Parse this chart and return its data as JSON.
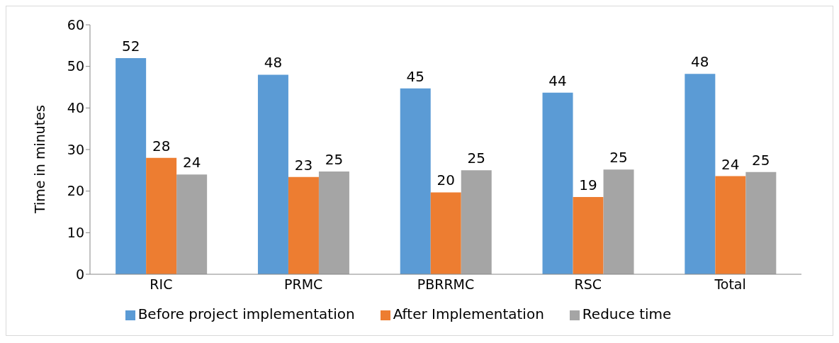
{
  "chart_data": {
    "type": "bar",
    "ylabel": "Time in minutes",
    "categories": [
      "RIC",
      "PRMC",
      "PBRRMC",
      "RSC",
      "Total"
    ],
    "series": [
      {
        "name": "Before project implementation",
        "color": "#5b9bd5",
        "values": [
          52,
          48,
          44.7,
          43.7,
          48.2
        ],
        "value_labels": [
          "52",
          "48",
          "45",
          "44",
          "48"
        ]
      },
      {
        "name": "After Implementation",
        "color": "#ed7d31",
        "values": [
          28,
          23.4,
          19.7,
          18.6,
          23.6
        ],
        "value_labels": [
          "28",
          "23",
          "20",
          "19",
          "24"
        ]
      },
      {
        "name": "Reduce time",
        "color": "#a5a5a5",
        "values": [
          24,
          24.7,
          25,
          25.2,
          24.6
        ],
        "value_labels": [
          "24",
          "25",
          "25",
          "25",
          "25"
        ]
      }
    ],
    "ylim": [
      0,
      60
    ],
    "yticks": [
      0,
      10,
      20,
      30,
      40,
      50,
      60
    ],
    "grid": false,
    "legend": "bottom"
  }
}
